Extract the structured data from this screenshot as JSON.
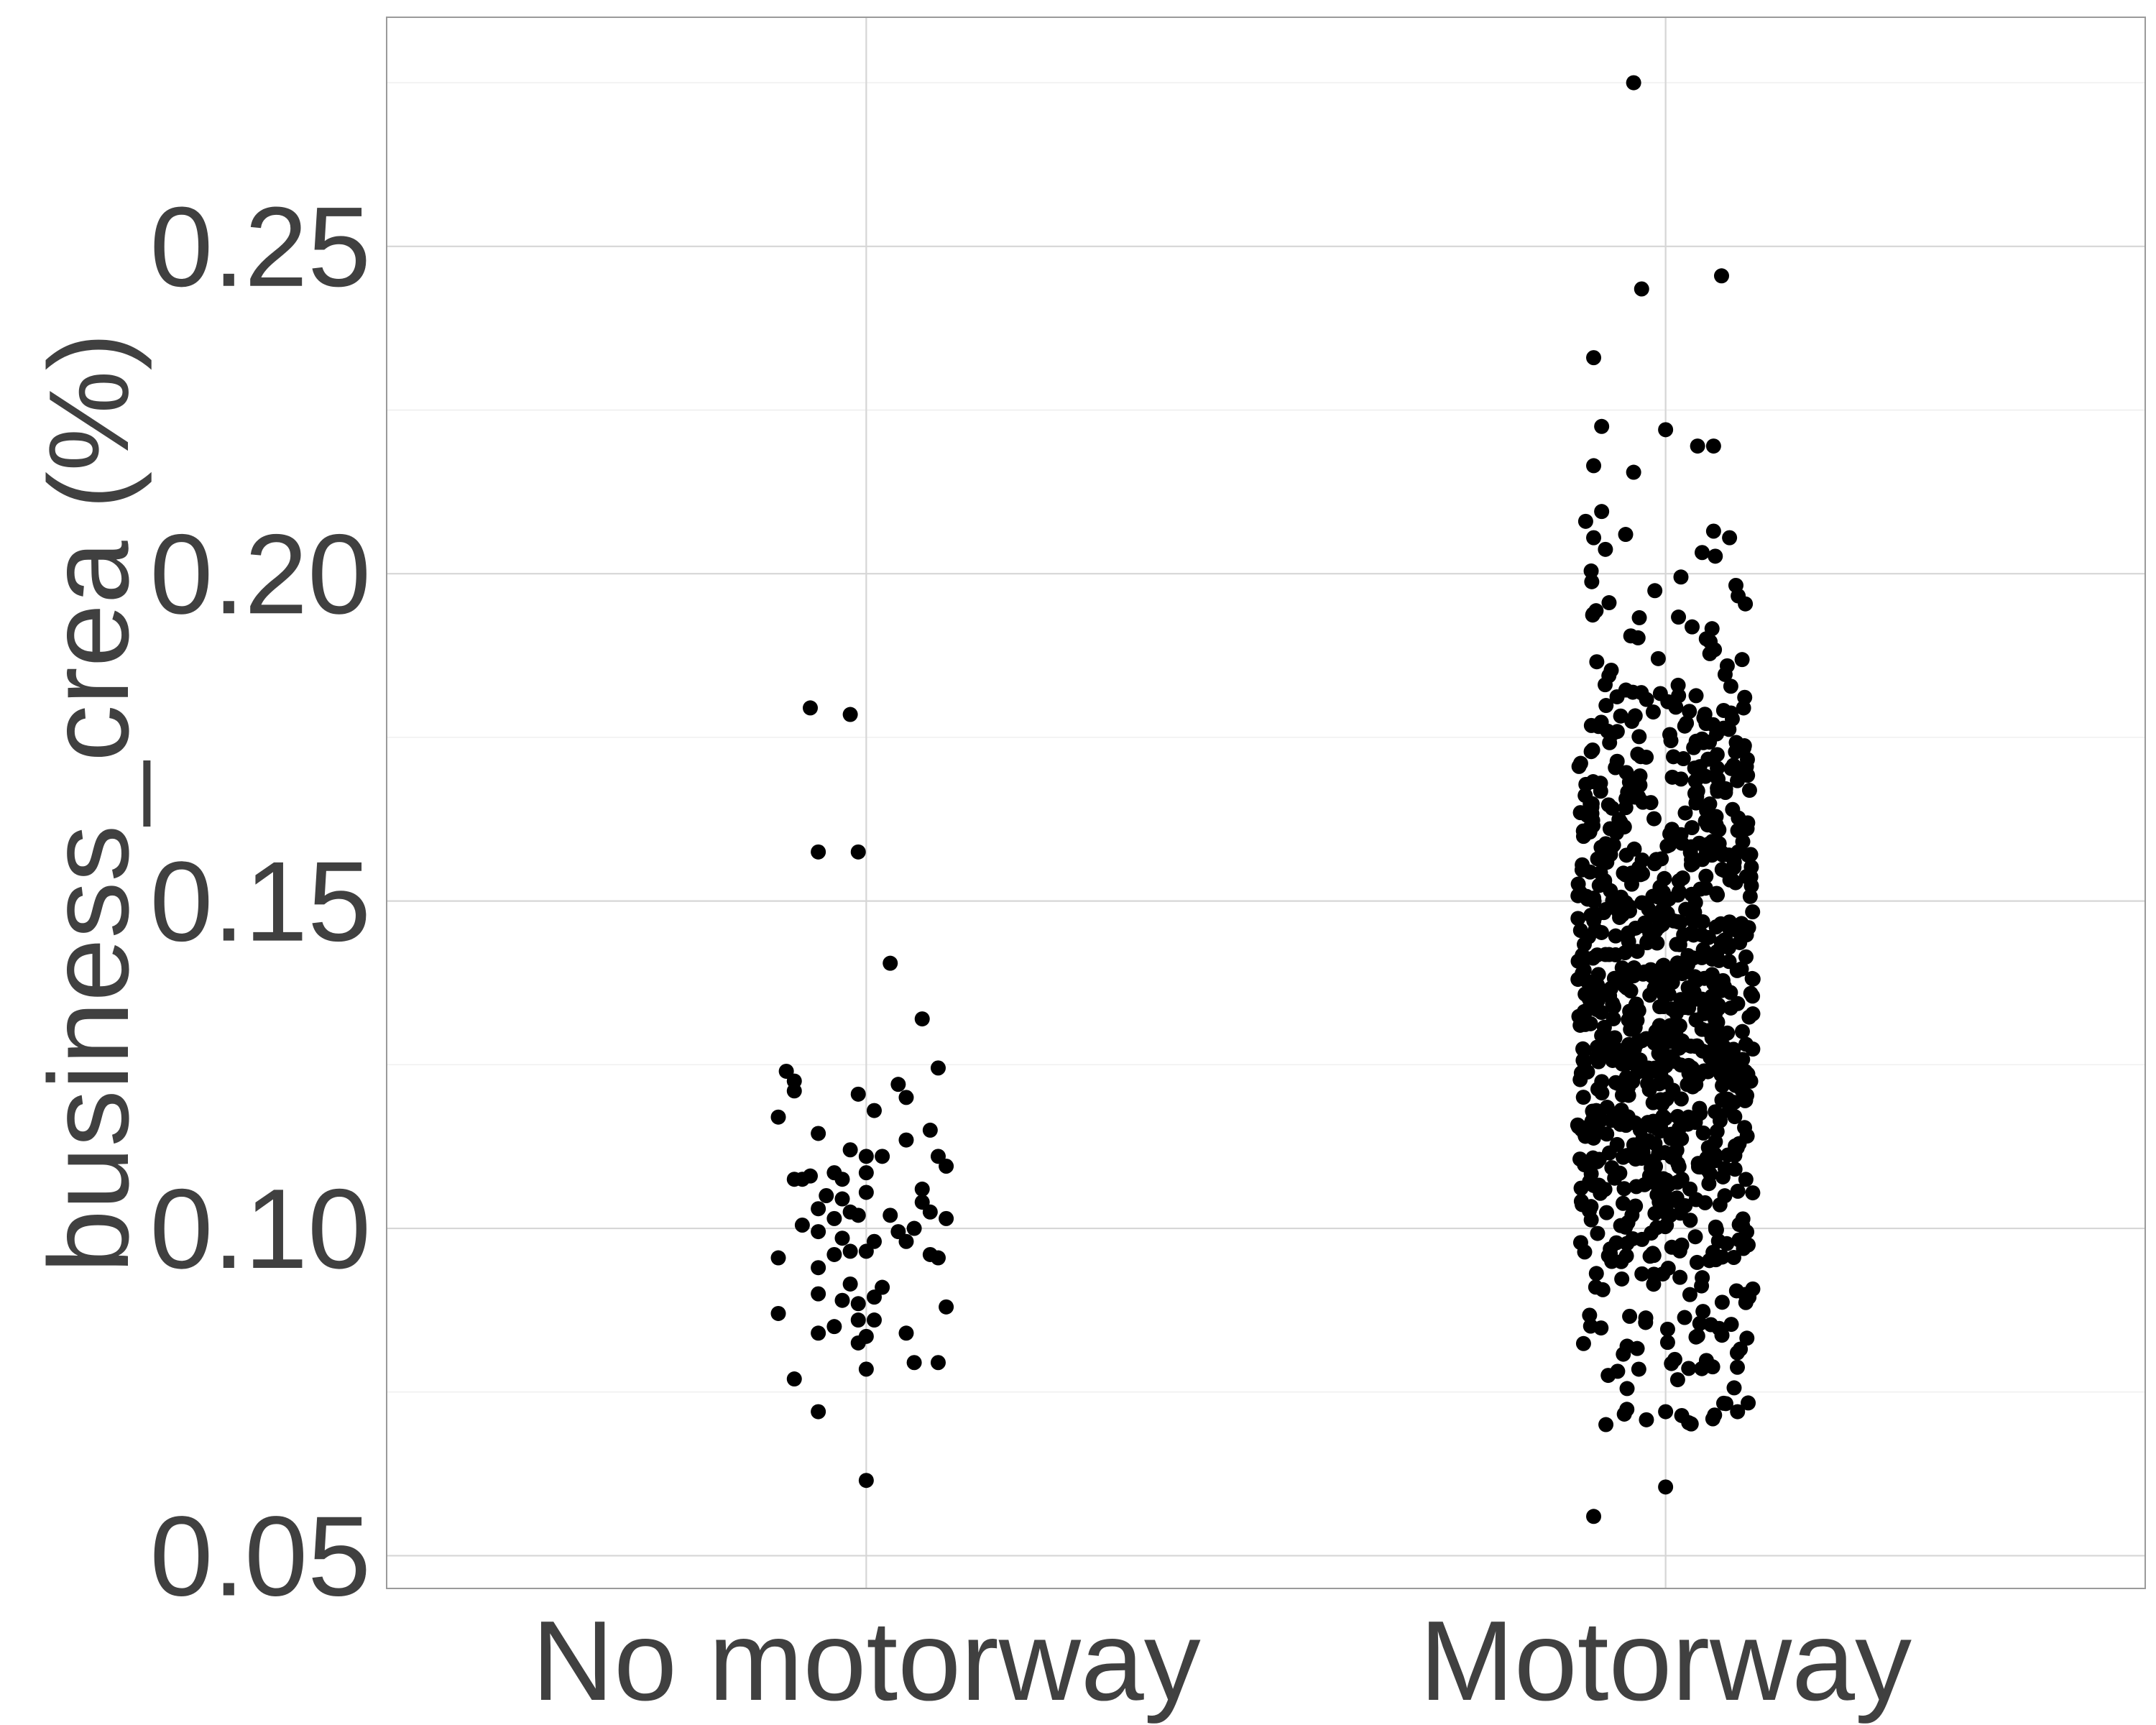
{
  "chart_data": {
    "type": "scatter",
    "subtype": "jitter-strip",
    "title": "",
    "xlabel": "",
    "ylabel": "business_crea (%)",
    "categories": [
      "No motorway",
      "Motorway"
    ],
    "ylim": [
      0.045,
      0.285
    ],
    "yticks": [
      0.05,
      0.1,
      0.15,
      0.2,
      0.25
    ],
    "ytick_labels": [
      "0.05",
      "0.10",
      "0.15",
      "0.20",
      "0.25"
    ],
    "grid": true,
    "legend": "none",
    "point_color": "#000000",
    "series": [
      {
        "category": "No motorway",
        "points": [
          {
            "dx": -0.07,
            "y": 0.1795
          },
          {
            "dx": -0.02,
            "y": 0.1785
          },
          {
            "dx": -0.06,
            "y": 0.1575
          },
          {
            "dx": -0.01,
            "y": 0.1575
          },
          {
            "dx": 0.03,
            "y": 0.1405
          },
          {
            "dx": 0.07,
            "y": 0.132
          },
          {
            "dx": -0.1,
            "y": 0.124
          },
          {
            "dx": -0.09,
            "y": 0.1225
          },
          {
            "dx": 0.09,
            "y": 0.1245
          },
          {
            "dx": -0.11,
            "y": 0.117
          },
          {
            "dx": -0.01,
            "y": 0.1205
          },
          {
            "dx": 0.04,
            "y": 0.122
          },
          {
            "dx": 0.05,
            "y": 0.12
          },
          {
            "dx": 0.01,
            "y": 0.118
          },
          {
            "dx": -0.09,
            "y": 0.121
          },
          {
            "dx": 0.08,
            "y": 0.115
          },
          {
            "dx": -0.06,
            "y": 0.1145
          },
          {
            "dx": 0.05,
            "y": 0.1135
          },
          {
            "dx": -0.02,
            "y": 0.112
          },
          {
            "dx": 0.0,
            "y": 0.111
          },
          {
            "dx": 0.02,
            "y": 0.111
          },
          {
            "dx": 0.09,
            "y": 0.111
          },
          {
            "dx": 0.1,
            "y": 0.1095
          },
          {
            "dx": -0.04,
            "y": 0.1085
          },
          {
            "dx": 0.0,
            "y": 0.1085
          },
          {
            "dx": -0.09,
            "y": 0.1075
          },
          {
            "dx": -0.08,
            "y": 0.1075
          },
          {
            "dx": -0.07,
            "y": 0.108
          },
          {
            "dx": -0.03,
            "y": 0.1075
          },
          {
            "dx": 0.07,
            "y": 0.106
          },
          {
            "dx": 0.0,
            "y": 0.1055
          },
          {
            "dx": -0.05,
            "y": 0.105
          },
          {
            "dx": -0.03,
            "y": 0.1045
          },
          {
            "dx": 0.07,
            "y": 0.104
          },
          {
            "dx": -0.06,
            "y": 0.103
          },
          {
            "dx": 0.03,
            "y": 0.102
          },
          {
            "dx": -0.02,
            "y": 0.1025
          },
          {
            "dx": -0.01,
            "y": 0.102
          },
          {
            "dx": 0.08,
            "y": 0.1025
          },
          {
            "dx": -0.04,
            "y": 0.1015
          },
          {
            "dx": -0.08,
            "y": 0.1005
          },
          {
            "dx": 0.1,
            "y": 0.1015
          },
          {
            "dx": -0.06,
            "y": 0.0995
          },
          {
            "dx": 0.04,
            "y": 0.0995
          },
          {
            "dx": 0.06,
            "y": 0.1
          },
          {
            "dx": -0.03,
            "y": 0.0985
          },
          {
            "dx": 0.01,
            "y": 0.098
          },
          {
            "dx": 0.05,
            "y": 0.098
          },
          {
            "dx": -0.11,
            "y": 0.0955
          },
          {
            "dx": -0.04,
            "y": 0.096
          },
          {
            "dx": -0.02,
            "y": 0.0965
          },
          {
            "dx": 0.0,
            "y": 0.0965
          },
          {
            "dx": 0.08,
            "y": 0.096
          },
          {
            "dx": 0.09,
            "y": 0.0955
          },
          {
            "dx": -0.06,
            "y": 0.094
          },
          {
            "dx": -0.02,
            "y": 0.0915
          },
          {
            "dx": 0.02,
            "y": 0.091
          },
          {
            "dx": -0.06,
            "y": 0.09
          },
          {
            "dx": -0.03,
            "y": 0.089
          },
          {
            "dx": 0.01,
            "y": 0.0895
          },
          {
            "dx": -0.01,
            "y": 0.0885
          },
          {
            "dx": -0.11,
            "y": 0.087
          },
          {
            "dx": -0.01,
            "y": 0.086
          },
          {
            "dx": 0.01,
            "y": 0.086
          },
          {
            "dx": 0.1,
            "y": 0.088
          },
          {
            "dx": -0.04,
            "y": 0.085
          },
          {
            "dx": -0.06,
            "y": 0.084
          },
          {
            "dx": 0.05,
            "y": 0.084
          },
          {
            "dx": -0.01,
            "y": 0.0825
          },
          {
            "dx": 0.0,
            "y": 0.0835
          },
          {
            "dx": 0.06,
            "y": 0.0795
          },
          {
            "dx": 0.09,
            "y": 0.0795
          },
          {
            "dx": 0.0,
            "y": 0.0785
          },
          {
            "dx": -0.09,
            "y": 0.077
          },
          {
            "dx": -0.06,
            "y": 0.072
          },
          {
            "dx": 0.0,
            "y": 0.0615
          }
        ]
      },
      {
        "category": "Motorway",
        "points_generated": true,
        "n": 900,
        "outliers": [
          {
            "dx": -0.04,
            "y": 0.275
          },
          {
            "dx": 0.07,
            "y": 0.2455
          },
          {
            "dx": -0.03,
            "y": 0.2435
          },
          {
            "dx": -0.09,
            "y": 0.233
          },
          {
            "dx": -0.08,
            "y": 0.2225
          },
          {
            "dx": 0.0,
            "y": 0.222
          },
          {
            "dx": 0.04,
            "y": 0.2195
          },
          {
            "dx": 0.06,
            "y": 0.2195
          },
          {
            "dx": -0.09,
            "y": 0.2165
          },
          {
            "dx": -0.04,
            "y": 0.2155
          },
          {
            "dx": -0.08,
            "y": 0.2095
          },
          {
            "dx": -0.1,
            "y": 0.208
          },
          {
            "dx": -0.05,
            "y": 0.206
          },
          {
            "dx": -0.09,
            "y": 0.2055
          },
          {
            "dx": 0.06,
            "y": 0.2065
          },
          {
            "dx": 0.08,
            "y": 0.2055
          },
          {
            "dx": -0.09,
            "y": 0.056
          },
          {
            "dx": 0.0,
            "y": 0.0605
          },
          {
            "dx": 0.0,
            "y": 0.072
          },
          {
            "dx": 0.09,
            "y": 0.072
          }
        ],
        "y_mean": 0.133,
        "y_sd": 0.03,
        "y_range": [
          0.07,
          0.205
        ]
      }
    ]
  }
}
